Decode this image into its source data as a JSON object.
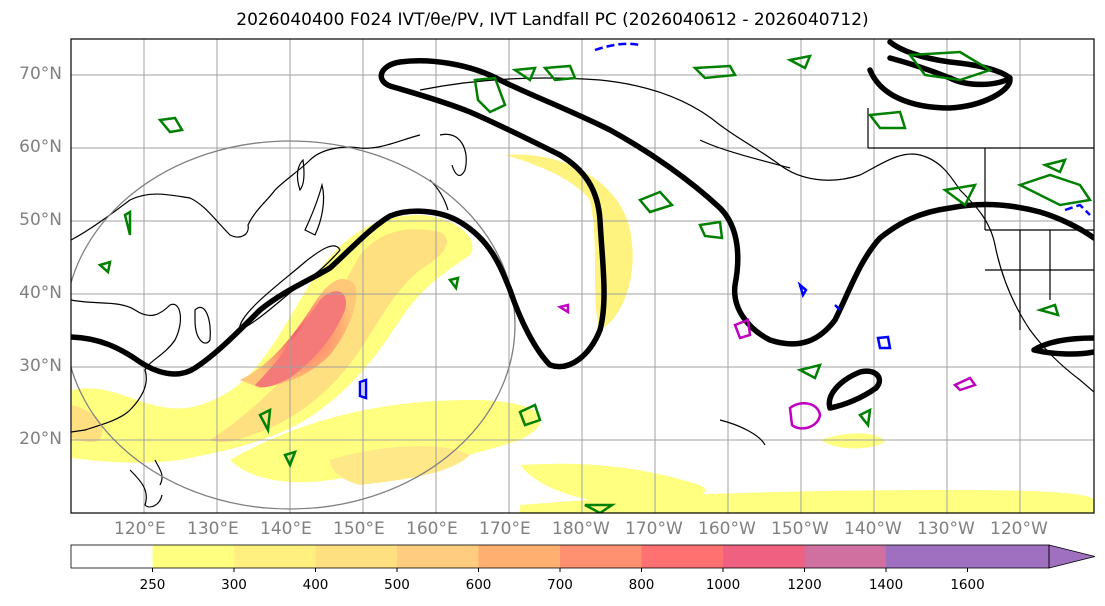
{
  "title": "2026040400 F024 IVT/θe/PV, IVT Landfall PC (2026040612 - 2026040712)",
  "map": {
    "lat_labels": [
      {
        "text": "70°N",
        "lat": 70
      },
      {
        "text": "60°N",
        "lat": 60
      },
      {
        "text": "50°N",
        "lat": 50
      },
      {
        "text": "40°N",
        "lat": 40
      },
      {
        "text": "30°N",
        "lat": 30
      },
      {
        "text": "20°N",
        "lat": 20
      }
    ],
    "lon_labels": [
      {
        "text": "120°E",
        "lon": 120
      },
      {
        "text": "130°E",
        "lon": 130
      },
      {
        "text": "140°E",
        "lon": 140
      },
      {
        "text": "150°E",
        "lon": 150
      },
      {
        "text": "160°E",
        "lon": 160
      },
      {
        "text": "170°E",
        "lon": 170
      },
      {
        "text": "180°W",
        "lon": 180
      },
      {
        "text": "170°W",
        "lon": 190
      },
      {
        "text": "160°W",
        "lon": 200
      },
      {
        "text": "150°W",
        "lon": 210
      },
      {
        "text": "140°W",
        "lon": 220
      },
      {
        "text": "130°W",
        "lon": 230
      },
      {
        "text": "120°W",
        "lon": 240
      }
    ],
    "colors": {
      "coast": "#000000",
      "grid": "#a0a0a0",
      "pv_contour": "#000000",
      "theta_e_green": "#008000",
      "theta_e_magenta": "#c000c0",
      "theta_e_blue": "#0000ff",
      "circle": "#808080"
    }
  },
  "colorbar": {
    "levels": [
      "250",
      "300",
      "400",
      "500",
      "600",
      "700",
      "800",
      "1000",
      "1200",
      "1400",
      "1600"
    ],
    "colors": [
      "#ffffff",
      "#ffff80",
      "#fff080",
      "#ffe080",
      "#ffcc80",
      "#ffb070",
      "#ff9070",
      "#ff7070",
      "#f06080",
      "#d070a0",
      "#a070c0",
      "#a070c0"
    ]
  }
}
